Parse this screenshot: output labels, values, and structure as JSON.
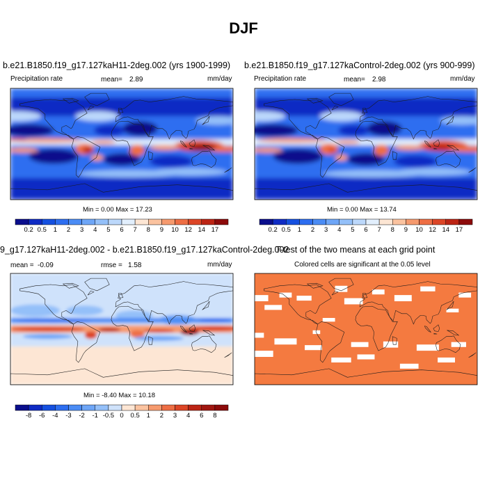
{
  "page": {
    "title": "DJF"
  },
  "panels": {
    "p1": {
      "title": "b.e21.B1850.f19_g17.127kaH11-2deg.002 (yrs 1900-1999)",
      "left_label": "Precipitation rate",
      "mean_label": "mean=",
      "mean_value": "2.89",
      "units": "mm/day",
      "minmax_text": "Min =   0.00 Max =  17.23"
    },
    "p2": {
      "title": "b.e21.B1850.f19_g17.127kaControl-2deg.002 (yrs 900-999)",
      "left_label": "Precipitation rate",
      "mean_label": "mean=",
      "mean_value": "2.98",
      "units": "mm/day",
      "minmax_text": "Min =   0.00 Max =  13.74"
    },
    "p3": {
      "title": "9_g17.127kaH11-2deg.002 - b.e21.B1850.f19_g17.127kaControl-2deg.002",
      "mean_label": "mean =",
      "mean_value": "-0.09",
      "rmse_label": "rmse =",
      "rmse_value": "1.58",
      "units": "mm/day",
      "minmax_text": "Min =  -8.40 Max =  10.18"
    },
    "p4": {
      "title": "T-test of the two means at each grid point",
      "subtitle": "Colored cells are significant at the 0.05 level"
    }
  },
  "colors": {
    "significant": "#f47a40",
    "frame": "#000000"
  },
  "chart_data": [
    {
      "type": "heatmap",
      "panel": "p1",
      "variable": "Precipitation rate",
      "units": "mm/day",
      "mean": 2.89,
      "min": 0.0,
      "max": 17.23,
      "colorbar_labels": [
        "0.2",
        "0.5",
        "1",
        "2",
        "3",
        "4",
        "5",
        "6",
        "7",
        "8",
        "9",
        "10",
        "12",
        "14",
        "17"
      ],
      "colorbar_colors": [
        "#0a0e8c",
        "#0f2bc4",
        "#1550e0",
        "#2d6ef0",
        "#4b8cf5",
        "#6ea6f7",
        "#94c0f9",
        "#bcd8fb",
        "#e2effd",
        "#fde6d4",
        "#fbc3a0",
        "#f69a6e",
        "#ee6e44",
        "#dc4526",
        "#bc2414",
        "#8c0a0a"
      ],
      "cmap": "blue-white-red",
      "map": "global, 180W-180E, 90S-90N"
    },
    {
      "type": "heatmap",
      "panel": "p2",
      "variable": "Precipitation rate",
      "units": "mm/day",
      "mean": 2.98,
      "min": 0.0,
      "max": 13.74,
      "colorbar_labels": [
        "0.2",
        "0.5",
        "1",
        "2",
        "3",
        "4",
        "5",
        "6",
        "7",
        "8",
        "9",
        "10",
        "12",
        "14",
        "17"
      ],
      "colorbar_colors": [
        "#0a0e8c",
        "#0f2bc4",
        "#1550e0",
        "#2d6ef0",
        "#4b8cf5",
        "#6ea6f7",
        "#94c0f9",
        "#bcd8fb",
        "#e2effd",
        "#fde6d4",
        "#fbc3a0",
        "#f69a6e",
        "#ee6e44",
        "#dc4526",
        "#bc2414",
        "#8c0a0a"
      ],
      "cmap": "blue-white-red",
      "map": "global, 180W-180E, 90S-90N"
    },
    {
      "type": "heatmap",
      "panel": "p3",
      "variable": "difference",
      "units": "mm/day",
      "mean": -0.09,
      "rmse": 1.58,
      "min": -8.4,
      "max": 10.18,
      "colorbar_labels": [
        "-8",
        "-6",
        "-4",
        "-3",
        "-2",
        "-1",
        "-0.5",
        "0",
        "0.5",
        "1",
        "2",
        "3",
        "4",
        "6",
        "8"
      ],
      "colorbar_colors": [
        "#0a0e8c",
        "#0f2bc4",
        "#1550e0",
        "#2d6ef0",
        "#4b8cf5",
        "#6ea6f7",
        "#94c0f9",
        "#cfe2fb",
        "#fde6d4",
        "#fbc3a0",
        "#f69a6e",
        "#ee6e44",
        "#dc4526",
        "#bc2414",
        "#a01610",
        "#8c0a0a"
      ],
      "cmap": "blue-white-red",
      "map": "global, 180W-180E, 90S-90N"
    },
    {
      "type": "heatmap",
      "panel": "p4",
      "variable": "T-test significance",
      "significance_level": 0.05,
      "significant_fraction": 0.82,
      "map": "global, 180W-180E, 90S-90N"
    }
  ]
}
